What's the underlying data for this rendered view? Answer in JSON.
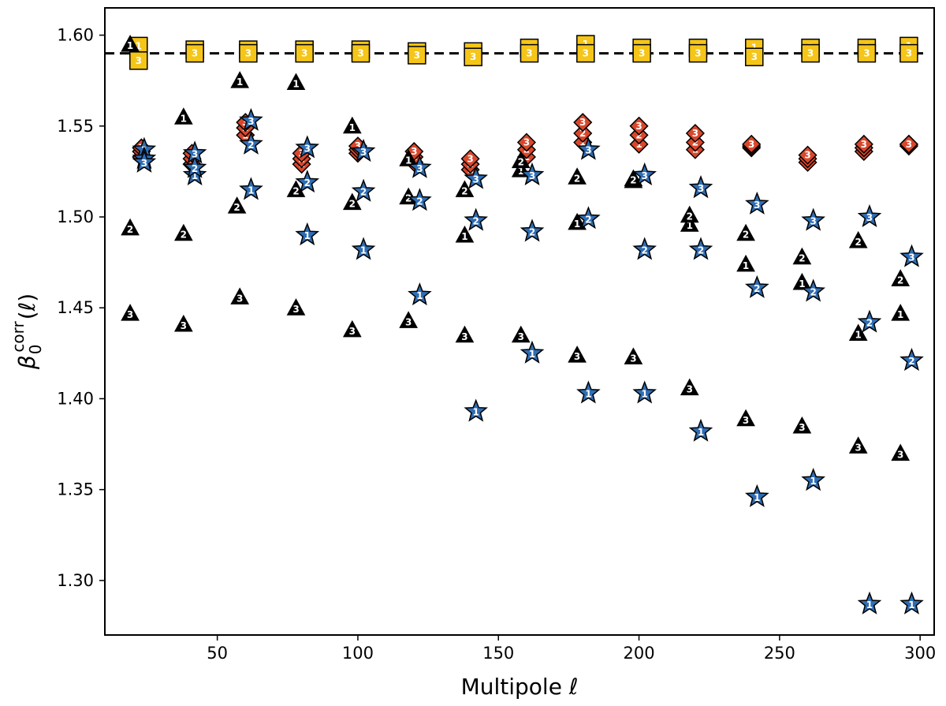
{
  "chart_data": {
    "type": "scatter",
    "xlabel": "Multipole ℓ",
    "ylabel_parts": {
      "base": "β",
      "sub": "0",
      "sup": "corr",
      "arg": "(ℓ)"
    },
    "xlim": [
      10,
      305
    ],
    "ylim": [
      1.27,
      1.615
    ],
    "xticks": [
      50,
      100,
      150,
      200,
      250,
      300
    ],
    "yticks": [
      1.3,
      1.35,
      1.4,
      1.45,
      1.5,
      1.55,
      1.6
    ],
    "reference_line": {
      "y": 1.59,
      "style": "dashed",
      "color": "#000000"
    },
    "grid": false,
    "legend": "none",
    "series": [
      {
        "marker": "square",
        "color": "#f5c518",
        "text_color": "#ffffff",
        "points": [
          {
            "x": 22,
            "y": 1.594,
            "label": "1"
          },
          {
            "x": 22,
            "y": 1.586,
            "label": "3"
          },
          {
            "x": 42,
            "y": 1.592,
            "label": "1"
          },
          {
            "x": 42,
            "y": 1.59,
            "label": "3"
          },
          {
            "x": 61,
            "y": 1.592,
            "label": "1"
          },
          {
            "x": 61,
            "y": 1.59,
            "label": "3"
          },
          {
            "x": 81,
            "y": 1.592,
            "label": "1"
          },
          {
            "x": 81,
            "y": 1.59,
            "label": "3"
          },
          {
            "x": 101,
            "y": 1.592,
            "label": "1"
          },
          {
            "x": 101,
            "y": 1.59,
            "label": "3"
          },
          {
            "x": 121,
            "y": 1.591,
            "label": "1"
          },
          {
            "x": 121,
            "y": 1.589,
            "label": "3"
          },
          {
            "x": 141,
            "y": 1.591,
            "label": "1"
          },
          {
            "x": 141,
            "y": 1.588,
            "label": "3"
          },
          {
            "x": 161,
            "y": 1.593,
            "label": "1"
          },
          {
            "x": 161,
            "y": 1.59,
            "label": "3"
          },
          {
            "x": 181,
            "y": 1.595,
            "label": "1"
          },
          {
            "x": 181,
            "y": 1.59,
            "label": "3"
          },
          {
            "x": 201,
            "y": 1.593,
            "label": "1"
          },
          {
            "x": 201,
            "y": 1.59,
            "label": "3"
          },
          {
            "x": 221,
            "y": 1.593,
            "label": "1"
          },
          {
            "x": 221,
            "y": 1.59,
            "label": "3"
          },
          {
            "x": 241,
            "y": 1.593,
            "label": "1"
          },
          {
            "x": 241,
            "y": 1.588,
            "label": "3"
          },
          {
            "x": 261,
            "y": 1.593,
            "label": "1"
          },
          {
            "x": 261,
            "y": 1.59,
            "label": "3"
          },
          {
            "x": 281,
            "y": 1.593,
            "label": "1"
          },
          {
            "x": 281,
            "y": 1.59,
            "label": "3"
          },
          {
            "x": 296,
            "y": 1.594,
            "label": "1"
          },
          {
            "x": 296,
            "y": 1.59,
            "label": "3"
          }
        ]
      },
      {
        "marker": "diamond",
        "color": "#d9472b",
        "text_color": "#ffffff",
        "points": [
          {
            "x": 23,
            "y": 1.533,
            "label": "1"
          },
          {
            "x": 23,
            "y": 1.536,
            "label": "2"
          },
          {
            "x": 23,
            "y": 1.538,
            "label": "3"
          },
          {
            "x": 41,
            "y": 1.529,
            "label": "1"
          },
          {
            "x": 41,
            "y": 1.532,
            "label": "2"
          },
          {
            "x": 41,
            "y": 1.535,
            "label": "3"
          },
          {
            "x": 60,
            "y": 1.545,
            "label": "1"
          },
          {
            "x": 60,
            "y": 1.549,
            "label": "2"
          },
          {
            "x": 60,
            "y": 1.552,
            "label": "3"
          },
          {
            "x": 80,
            "y": 1.529,
            "label": "1"
          },
          {
            "x": 80,
            "y": 1.532,
            "label": "2"
          },
          {
            "x": 80,
            "y": 1.535,
            "label": "3"
          },
          {
            "x": 100,
            "y": 1.535,
            "label": "1"
          },
          {
            "x": 100,
            "y": 1.537,
            "label": "2"
          },
          {
            "x": 100,
            "y": 1.539,
            "label": "3"
          },
          {
            "x": 120,
            "y": 1.53,
            "label": "1"
          },
          {
            "x": 120,
            "y": 1.533,
            "label": "2"
          },
          {
            "x": 120,
            "y": 1.536,
            "label": "3"
          },
          {
            "x": 140,
            "y": 1.526,
            "label": "1"
          },
          {
            "x": 140,
            "y": 1.529,
            "label": "2"
          },
          {
            "x": 140,
            "y": 1.532,
            "label": "3"
          },
          {
            "x": 160,
            "y": 1.533,
            "label": "1"
          },
          {
            "x": 160,
            "y": 1.537,
            "label": "2"
          },
          {
            "x": 160,
            "y": 1.541,
            "label": "3"
          },
          {
            "x": 180,
            "y": 1.541,
            "label": "1"
          },
          {
            "x": 180,
            "y": 1.546,
            "label": "2"
          },
          {
            "x": 180,
            "y": 1.552,
            "label": "3"
          },
          {
            "x": 200,
            "y": 1.54,
            "label": "1"
          },
          {
            "x": 200,
            "y": 1.545,
            "label": "2"
          },
          {
            "x": 200,
            "y": 1.55,
            "label": "3"
          },
          {
            "x": 220,
            "y": 1.537,
            "label": "1"
          },
          {
            "x": 220,
            "y": 1.541,
            "label": "2"
          },
          {
            "x": 220,
            "y": 1.546,
            "label": "3"
          },
          {
            "x": 240,
            "y": 1.538,
            "label": "1"
          },
          {
            "x": 240,
            "y": 1.539,
            "label": "2"
          },
          {
            "x": 240,
            "y": 1.54,
            "label": "3"
          },
          {
            "x": 260,
            "y": 1.53,
            "label": "1"
          },
          {
            "x": 260,
            "y": 1.532,
            "label": "2"
          },
          {
            "x": 260,
            "y": 1.534,
            "label": "3"
          },
          {
            "x": 280,
            "y": 1.536,
            "label": "1"
          },
          {
            "x": 280,
            "y": 1.538,
            "label": "2"
          },
          {
            "x": 280,
            "y": 1.54,
            "label": "3"
          },
          {
            "x": 296,
            "y": 1.539,
            "label": "1"
          },
          {
            "x": 296,
            "y": 1.54,
            "label": "2"
          },
          {
            "x": 296,
            "y": 1.54,
            "label": "3"
          }
        ]
      },
      {
        "marker": "triangle",
        "color": "#000000",
        "text_color": "#ffffff",
        "points": [
          {
            "x": 19,
            "y": 1.595,
            "label": "1"
          },
          {
            "x": 19,
            "y": 1.494,
            "label": "2"
          },
          {
            "x": 19,
            "y": 1.447,
            "label": "3"
          },
          {
            "x": 38,
            "y": 1.555,
            "label": "1"
          },
          {
            "x": 38,
            "y": 1.491,
            "label": "2"
          },
          {
            "x": 38,
            "y": 1.441,
            "label": "3"
          },
          {
            "x": 58,
            "y": 1.575,
            "label": "1"
          },
          {
            "x": 57,
            "y": 1.506,
            "label": "2"
          },
          {
            "x": 58,
            "y": 1.456,
            "label": "3"
          },
          {
            "x": 78,
            "y": 1.574,
            "label": "1"
          },
          {
            "x": 78,
            "y": 1.515,
            "label": "2"
          },
          {
            "x": 78,
            "y": 1.45,
            "label": "3"
          },
          {
            "x": 98,
            "y": 1.55,
            "label": "1"
          },
          {
            "x": 98,
            "y": 1.508,
            "label": "2"
          },
          {
            "x": 98,
            "y": 1.438,
            "label": "3"
          },
          {
            "x": 118,
            "y": 1.532,
            "label": "1"
          },
          {
            "x": 118,
            "y": 1.511,
            "label": "2"
          },
          {
            "x": 118,
            "y": 1.443,
            "label": "3"
          },
          {
            "x": 138,
            "y": 1.49,
            "label": "1"
          },
          {
            "x": 138,
            "y": 1.515,
            "label": "2"
          },
          {
            "x": 138,
            "y": 1.435,
            "label": "3"
          },
          {
            "x": 158,
            "y": 1.526,
            "label": "1"
          },
          {
            "x": 158,
            "y": 1.531,
            "label": "2"
          },
          {
            "x": 158,
            "y": 1.435,
            "label": "3"
          },
          {
            "x": 178,
            "y": 1.497,
            "label": "1"
          },
          {
            "x": 178,
            "y": 1.522,
            "label": "2"
          },
          {
            "x": 178,
            "y": 1.424,
            "label": "3"
          },
          {
            "x": 198,
            "y": 1.52,
            "label": "1"
          },
          {
            "x": 198,
            "y": 1.521,
            "label": "2"
          },
          {
            "x": 198,
            "y": 1.423,
            "label": "3"
          },
          {
            "x": 218,
            "y": 1.496,
            "label": "1"
          },
          {
            "x": 218,
            "y": 1.501,
            "label": "2"
          },
          {
            "x": 218,
            "y": 1.406,
            "label": "3"
          },
          {
            "x": 238,
            "y": 1.474,
            "label": "1"
          },
          {
            "x": 238,
            "y": 1.491,
            "label": "2"
          },
          {
            "x": 238,
            "y": 1.389,
            "label": "3"
          },
          {
            "x": 258,
            "y": 1.464,
            "label": "1"
          },
          {
            "x": 258,
            "y": 1.478,
            "label": "2"
          },
          {
            "x": 258,
            "y": 1.385,
            "label": "3"
          },
          {
            "x": 278,
            "y": 1.436,
            "label": "1"
          },
          {
            "x": 278,
            "y": 1.487,
            "label": "2"
          },
          {
            "x": 278,
            "y": 1.374,
            "label": "3"
          },
          {
            "x": 293,
            "y": 1.447,
            "label": "1"
          },
          {
            "x": 293,
            "y": 1.466,
            "label": "2"
          },
          {
            "x": 293,
            "y": 1.37,
            "label": "3"
          }
        ]
      },
      {
        "marker": "star",
        "color": "#2e6db4",
        "text_color": "#ffffff",
        "points": [
          {
            "x": 24,
            "y": 1.537,
            "label": "1"
          },
          {
            "x": 24,
            "y": 1.532,
            "label": "2"
          },
          {
            "x": 24,
            "y": 1.53,
            "label": "3"
          },
          {
            "x": 42,
            "y": 1.523,
            "label": "1"
          },
          {
            "x": 42,
            "y": 1.527,
            "label": "2"
          },
          {
            "x": 42,
            "y": 1.535,
            "label": "3"
          },
          {
            "x": 62,
            "y": 1.515,
            "label": "1"
          },
          {
            "x": 62,
            "y": 1.54,
            "label": "2"
          },
          {
            "x": 62,
            "y": 1.553,
            "label": "3"
          },
          {
            "x": 82,
            "y": 1.49,
            "label": "1"
          },
          {
            "x": 82,
            "y": 1.519,
            "label": "2"
          },
          {
            "x": 82,
            "y": 1.538,
            "label": "3"
          },
          {
            "x": 102,
            "y": 1.482,
            "label": "1"
          },
          {
            "x": 102,
            "y": 1.514,
            "label": "2"
          },
          {
            "x": 102,
            "y": 1.536,
            "label": "3"
          },
          {
            "x": 122,
            "y": 1.457,
            "label": "1"
          },
          {
            "x": 122,
            "y": 1.509,
            "label": "2"
          },
          {
            "x": 122,
            "y": 1.527,
            "label": "3"
          },
          {
            "x": 142,
            "y": 1.393,
            "label": "1"
          },
          {
            "x": 142,
            "y": 1.498,
            "label": "2"
          },
          {
            "x": 142,
            "y": 1.521,
            "label": "3"
          },
          {
            "x": 162,
            "y": 1.425,
            "label": "1"
          },
          {
            "x": 162,
            "y": 1.492,
            "label": "2"
          },
          {
            "x": 162,
            "y": 1.523,
            "label": "3"
          },
          {
            "x": 182,
            "y": 1.403,
            "label": "1"
          },
          {
            "x": 182,
            "y": 1.499,
            "label": "2"
          },
          {
            "x": 182,
            "y": 1.537,
            "label": "3"
          },
          {
            "x": 202,
            "y": 1.403,
            "label": "1"
          },
          {
            "x": 202,
            "y": 1.482,
            "label": "2"
          },
          {
            "x": 202,
            "y": 1.523,
            "label": "3"
          },
          {
            "x": 222,
            "y": 1.382,
            "label": "1"
          },
          {
            "x": 222,
            "y": 1.482,
            "label": "2"
          },
          {
            "x": 222,
            "y": 1.516,
            "label": "3"
          },
          {
            "x": 242,
            "y": 1.346,
            "label": "1"
          },
          {
            "x": 242,
            "y": 1.461,
            "label": "2"
          },
          {
            "x": 242,
            "y": 1.507,
            "label": "3"
          },
          {
            "x": 262,
            "y": 1.355,
            "label": "1"
          },
          {
            "x": 262,
            "y": 1.459,
            "label": "2"
          },
          {
            "x": 262,
            "y": 1.498,
            "label": "3"
          },
          {
            "x": 282,
            "y": 1.287,
            "label": "1"
          },
          {
            "x": 282,
            "y": 1.442,
            "label": "2"
          },
          {
            "x": 282,
            "y": 1.5,
            "label": "3"
          },
          {
            "x": 297,
            "y": 1.287,
            "label": "1"
          },
          {
            "x": 297,
            "y": 1.421,
            "label": "2"
          },
          {
            "x": 297,
            "y": 1.478,
            "label": "3"
          }
        ]
      }
    ]
  }
}
